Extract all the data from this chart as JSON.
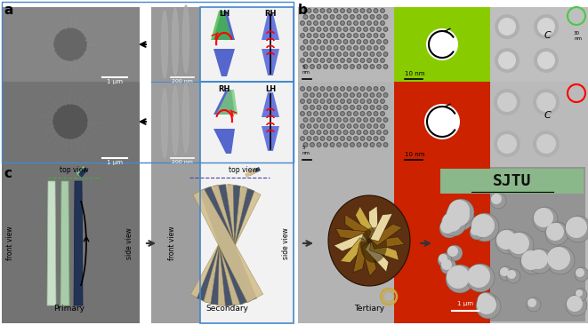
{
  "fig_width": 6.61,
  "fig_height": 3.66,
  "bg_color": "#ffffff",
  "label_a": "a",
  "label_b": "b",
  "label_c": "c",
  "label_fontsize": 11,
  "panel_a": {
    "border_color": "#4488cc",
    "scale1": "1 μm",
    "scale2": "200 nm"
  },
  "panel_b": {
    "scale_10nm": "10 nm",
    "green_color": "#88cc00",
    "red_color": "#cc2200"
  },
  "panel_c": {
    "primary_label": "Primary",
    "secondary_label": "Secondary",
    "tertiary_label": "Tertiary",
    "top_view": "top view",
    "front_view": "front view",
    "side_view": "side view",
    "sjtu_bg": "#8ab88a",
    "scale_1um": "1 μm"
  }
}
